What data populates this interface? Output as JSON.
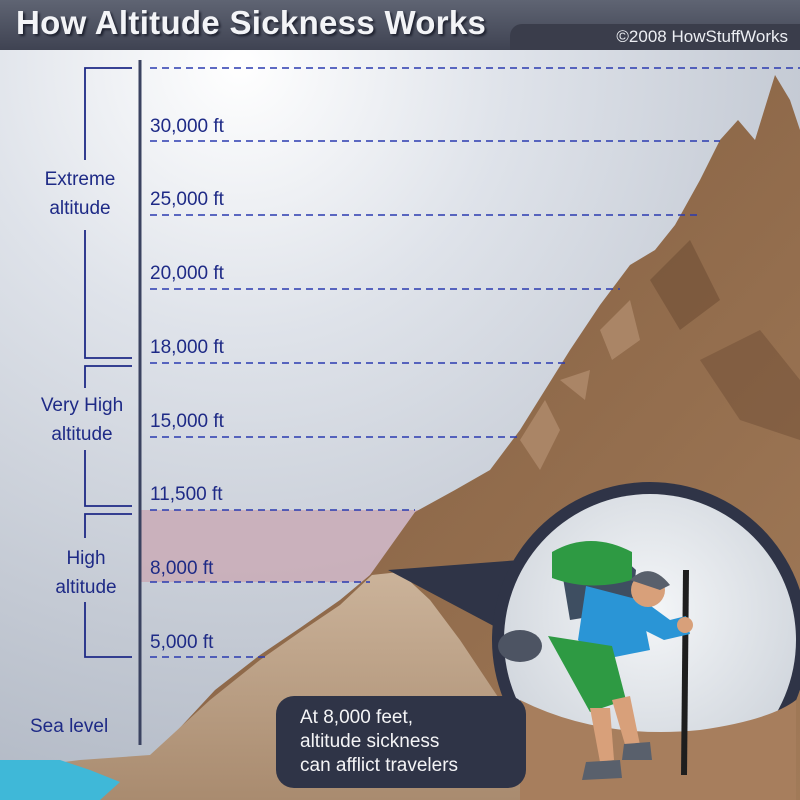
{
  "header": {
    "title": "How Altitude Sickness Works",
    "credit": "©2008 HowStuffWorks"
  },
  "altitude_marks": [
    {
      "label": "30,000 ft"
    },
    {
      "label": "25,000 ft"
    },
    {
      "label": "20,000 ft"
    },
    {
      "label": "18,000 ft"
    },
    {
      "label": "15,000 ft"
    },
    {
      "label": "11,500 ft"
    },
    {
      "label": "8,000 ft"
    },
    {
      "label": "5,000 ft"
    }
  ],
  "zones": {
    "extreme": {
      "line1": "Extreme",
      "line2": "altitude"
    },
    "very_high": {
      "line1": "Very High",
      "line2": "altitude"
    },
    "high": {
      "line1": "High",
      "line2": "altitude"
    }
  },
  "sea_level": "Sea level",
  "callout": {
    "line1": "At 8,000 feet,",
    "line2": "altitude sickness",
    "line3": "can afflict travelers"
  },
  "colors": {
    "label_blue": "#1e2a86",
    "mountain_brown": "#8a6446",
    "high_band": "#c9a9b4",
    "callout_bg": "#2f3447"
  }
}
